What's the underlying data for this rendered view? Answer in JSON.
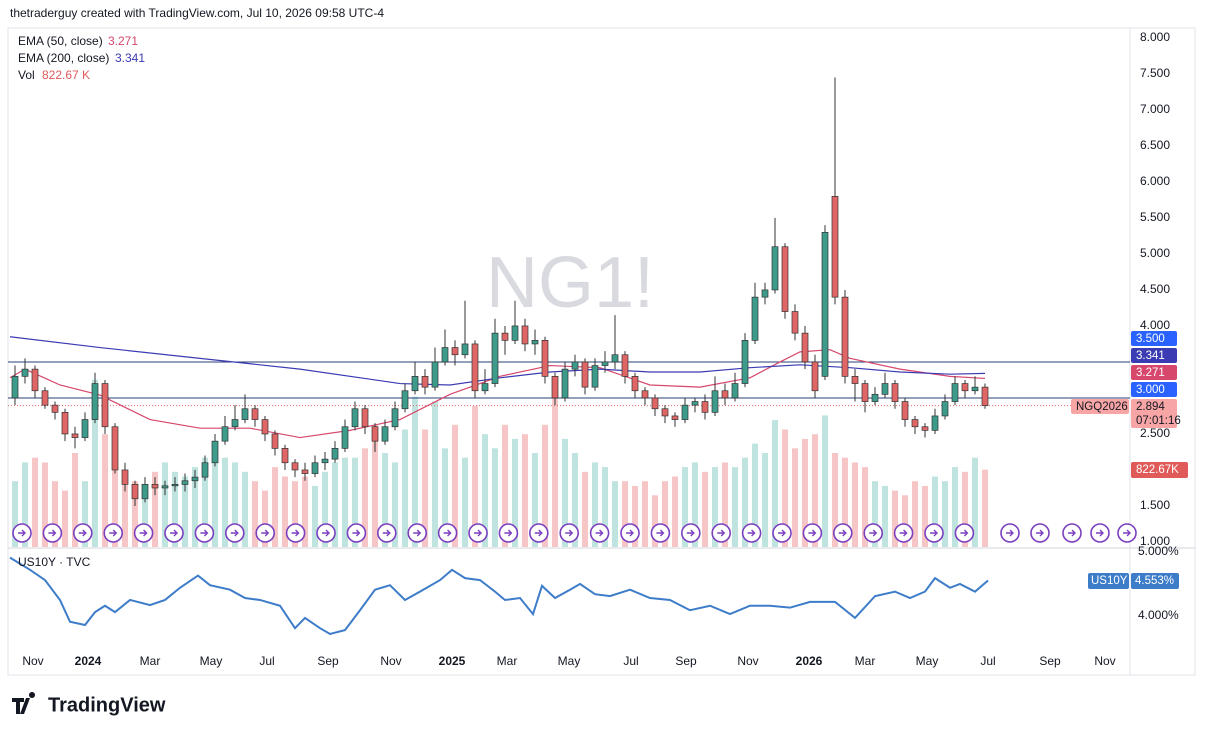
{
  "header": "thetraderguy created with TradingView.com, Jul 10, 2026 09:58 UTC-4",
  "footer": "TradingView",
  "chart_data": [
    {
      "type": "candlestick",
      "watermark": "NG1!",
      "up_color": "#3d9b8c",
      "down_color": "#e06666",
      "ylim": [
        0.93,
        8.11
      ],
      "yticks": [
        {
          "value": 8,
          "label": "8.000"
        },
        {
          "value": 7.5,
          "label": "7.500"
        },
        {
          "value": 7,
          "label": "7.000"
        },
        {
          "value": 6.5,
          "label": "6.500"
        },
        {
          "value": 6,
          "label": "6.000"
        },
        {
          "value": 5.5,
          "label": "5.500"
        },
        {
          "value": 5,
          "label": "5.000"
        },
        {
          "value": 4.5,
          "label": "4.500"
        },
        {
          "value": 4,
          "label": "4.000"
        },
        {
          "value": 2.5,
          "label": "2.500"
        },
        {
          "value": 1.5,
          "label": "1.500"
        },
        {
          "value": 1,
          "label": "1.000"
        }
      ],
      "time_axis": [
        "Nov",
        "2024",
        "Mar",
        "May",
        "Jul",
        "Sep",
        "Nov",
        "2025",
        "Mar",
        "May",
        "Jul",
        "Sep",
        "Nov",
        "2026",
        "Mar",
        "May",
        "Jul",
        "Sep",
        "Nov"
      ],
      "candles": [
        [
          3.0,
          3.45,
          2.9,
          3.3
        ],
        [
          3.3,
          3.55,
          3.2,
          3.4
        ],
        [
          3.4,
          3.45,
          3.0,
          3.1
        ],
        [
          3.1,
          3.15,
          2.85,
          2.9
        ],
        [
          2.9,
          2.95,
          2.7,
          2.8
        ],
        [
          2.8,
          2.85,
          2.4,
          2.5
        ],
        [
          2.5,
          2.6,
          2.3,
          2.45
        ],
        [
          2.45,
          2.8,
          2.4,
          2.7
        ],
        [
          2.7,
          3.35,
          2.65,
          3.2
        ],
        [
          3.2,
          3.25,
          2.5,
          2.6
        ],
        [
          2.6,
          2.65,
          1.95,
          2.0
        ],
        [
          2.0,
          2.1,
          1.7,
          1.8
        ],
        [
          1.8,
          1.85,
          1.5,
          1.6
        ],
        [
          1.6,
          1.9,
          1.55,
          1.8
        ],
        [
          1.8,
          1.9,
          1.65,
          1.75
        ],
        [
          1.75,
          1.85,
          1.65,
          1.78
        ],
        [
          1.78,
          1.9,
          1.7,
          1.8
        ],
        [
          1.8,
          1.95,
          1.7,
          1.85
        ],
        [
          1.85,
          2.0,
          1.75,
          1.9
        ],
        [
          1.9,
          2.2,
          1.85,
          2.1
        ],
        [
          2.1,
          2.5,
          2.05,
          2.4
        ],
        [
          2.4,
          2.75,
          2.35,
          2.6
        ],
        [
          2.6,
          2.9,
          2.55,
          2.7
        ],
        [
          2.7,
          3.05,
          2.65,
          2.85
        ],
        [
          2.85,
          2.9,
          2.6,
          2.7
        ],
        [
          2.7,
          2.75,
          2.4,
          2.5
        ],
        [
          2.5,
          2.55,
          2.2,
          2.3
        ],
        [
          2.3,
          2.35,
          2.0,
          2.1
        ],
        [
          2.1,
          2.15,
          1.9,
          2.0
        ],
        [
          2.0,
          2.1,
          1.85,
          1.95
        ],
        [
          1.95,
          2.2,
          1.9,
          2.1
        ],
        [
          2.1,
          2.25,
          2.0,
          2.15
        ],
        [
          2.15,
          2.4,
          2.1,
          2.3
        ],
        [
          2.3,
          2.7,
          2.25,
          2.6
        ],
        [
          2.6,
          2.95,
          2.55,
          2.85
        ],
        [
          2.85,
          2.9,
          2.5,
          2.6
        ],
        [
          2.6,
          2.65,
          2.25,
          2.4
        ],
        [
          2.4,
          2.7,
          2.35,
          2.6
        ],
        [
          2.6,
          2.95,
          2.55,
          2.85
        ],
        [
          2.85,
          3.2,
          2.8,
          3.1
        ],
        [
          3.1,
          3.5,
          3.05,
          3.3
        ],
        [
          3.3,
          3.4,
          3.05,
          3.15
        ],
        [
          3.15,
          3.7,
          3.1,
          3.5
        ],
        [
          3.5,
          3.95,
          3.45,
          3.7
        ],
        [
          3.7,
          3.8,
          3.45,
          3.6
        ],
        [
          3.6,
          4.35,
          3.55,
          3.75
        ],
        [
          3.75,
          3.8,
          3.0,
          3.1
        ],
        [
          3.1,
          3.4,
          3.05,
          3.2
        ],
        [
          3.2,
          4.1,
          3.15,
          3.9
        ],
        [
          3.9,
          4.0,
          3.6,
          3.8
        ],
        [
          3.8,
          4.35,
          3.75,
          4.0
        ],
        [
          4.0,
          4.1,
          3.65,
          3.75
        ],
        [
          3.75,
          3.95,
          3.6,
          3.8
        ],
        [
          3.8,
          3.85,
          3.2,
          3.3
        ],
        [
          3.3,
          3.35,
          2.9,
          3.0
        ],
        [
          3.0,
          3.5,
          2.95,
          3.4
        ],
        [
          3.4,
          3.6,
          3.3,
          3.5
        ],
        [
          3.5,
          3.55,
          3.05,
          3.15
        ],
        [
          3.15,
          3.55,
          3.1,
          3.45
        ],
        [
          3.45,
          3.65,
          3.35,
          3.5
        ],
        [
          3.5,
          4.15,
          3.4,
          3.6
        ],
        [
          3.6,
          3.65,
          3.2,
          3.3
        ],
        [
          3.3,
          3.35,
          3.0,
          3.1
        ],
        [
          3.1,
          3.15,
          2.9,
          3.0
        ],
        [
          3.0,
          3.05,
          2.75,
          2.85
        ],
        [
          2.85,
          2.9,
          2.65,
          2.75
        ],
        [
          2.75,
          2.8,
          2.6,
          2.7
        ],
        [
          2.7,
          3.0,
          2.65,
          2.9
        ],
        [
          2.9,
          3.0,
          2.8,
          2.95
        ],
        [
          2.95,
          3.05,
          2.7,
          2.8
        ],
        [
          2.8,
          3.3,
          2.75,
          3.1
        ],
        [
          3.1,
          3.2,
          2.9,
          3.0
        ],
        [
          3.0,
          3.35,
          2.95,
          3.2
        ],
        [
          3.2,
          3.9,
          3.15,
          3.8
        ],
        [
          3.8,
          4.6,
          3.75,
          4.4
        ],
        [
          4.4,
          4.6,
          4.3,
          4.5
        ],
        [
          4.5,
          5.5,
          4.45,
          5.1
        ],
        [
          5.1,
          5.15,
          4.1,
          4.2
        ],
        [
          4.2,
          4.3,
          3.8,
          3.9
        ],
        [
          3.9,
          4.0,
          3.4,
          3.5
        ],
        [
          3.5,
          3.6,
          3.0,
          3.1
        ],
        [
          3.3,
          5.4,
          3.25,
          5.3
        ],
        [
          5.8,
          7.45,
          4.3,
          4.4
        ],
        [
          4.4,
          4.5,
          3.2,
          3.3
        ],
        [
          3.3,
          3.4,
          2.95,
          3.2
        ],
        [
          3.2,
          3.25,
          2.8,
          2.95
        ],
        [
          2.95,
          3.15,
          2.9,
          3.05
        ],
        [
          3.05,
          3.35,
          3.0,
          3.2
        ],
        [
          3.2,
          3.25,
          2.85,
          2.95
        ],
        [
          2.95,
          3.0,
          2.6,
          2.7
        ],
        [
          2.7,
          2.75,
          2.5,
          2.6
        ],
        [
          2.6,
          2.65,
          2.45,
          2.55
        ],
        [
          2.55,
          2.85,
          2.5,
          2.75
        ],
        [
          2.75,
          3.05,
          2.7,
          2.95
        ],
        [
          2.95,
          3.3,
          2.9,
          3.2
        ],
        [
          3.2,
          3.25,
          3.0,
          3.1
        ],
        [
          3.1,
          3.3,
          3.05,
          3.15
        ],
        [
          3.15,
          3.2,
          2.85,
          2.894
        ]
      ],
      "indicators": [
        {
          "name": "EMA (50, close)",
          "color": "#d6476b",
          "last": 3.271,
          "points": [
            [
              -0.5,
              3.28
            ],
            [
              1,
              3.4
            ],
            [
              4.5,
              3.18
            ],
            [
              8.5,
              3.04
            ],
            [
              13.5,
              2.7
            ],
            [
              18.5,
              2.58
            ],
            [
              23.5,
              2.58
            ],
            [
              28.5,
              2.45
            ],
            [
              33.5,
              2.55
            ],
            [
              38.5,
              2.7
            ],
            [
              43.5,
              3.05
            ],
            [
              48.5,
              3.3
            ],
            [
              53.5,
              3.45
            ],
            [
              58.5,
              3.42
            ],
            [
              63.5,
              3.18
            ],
            [
              68.5,
              3.15
            ],
            [
              73.5,
              3.28
            ],
            [
              76.5,
              3.5
            ],
            [
              78.5,
              3.64
            ],
            [
              81.5,
              3.67
            ],
            [
              83.5,
              3.55
            ],
            [
              88.5,
              3.4
            ],
            [
              93.5,
              3.3
            ],
            [
              97,
              3.271
            ]
          ]
        },
        {
          "name": "EMA (200, close)",
          "color": "#3b3bb3",
          "last": 3.341,
          "points": [
            [
              -0.5,
              3.85
            ],
            [
              8.5,
              3.7
            ],
            [
              18.5,
              3.55
            ],
            [
              28.5,
              3.4
            ],
            [
              38.5,
              3.2
            ],
            [
              43.5,
              3.18
            ],
            [
              48.5,
              3.28
            ],
            [
              53.5,
              3.36
            ],
            [
              58.5,
              3.4
            ],
            [
              63.5,
              3.36
            ],
            [
              68.5,
              3.36
            ],
            [
              73.5,
              3.42
            ],
            [
              78.5,
              3.46
            ],
            [
              83.5,
              3.42
            ],
            [
              88.5,
              3.36
            ],
            [
              93.5,
              3.33
            ],
            [
              97,
              3.341
            ]
          ]
        }
      ],
      "volume": {
        "name": "Vol",
        "up_color": "#bfe3de",
        "down_color": "#f6c6c6",
        "badge_color": "#e05a5a",
        "vlim": [
          0,
          2000
        ],
        "last": 822.67,
        "last_labels": [
          "822.67 K",
          "822.67K"
        ],
        "values": [
          700,
          900,
          950,
          900,
          700,
          600,
          1000,
          700,
          1780,
          1200,
          950,
          800,
          700,
          600,
          800,
          900,
          800,
          750,
          850,
          950,
          1050,
          950,
          900,
          800,
          700,
          600,
          850,
          750,
          700,
          750,
          650,
          800,
          900,
          950,
          950,
          1050,
          1300,
          1000,
          900,
          1250,
          1600,
          1250,
          1550,
          1050,
          1300,
          950,
          1500,
          1200,
          1050,
          1300,
          1150,
          1200,
          1000,
          1300,
          1650,
          1150,
          1000,
          800,
          900,
          850,
          700,
          700,
          650,
          700,
          550,
          700,
          750,
          850,
          900,
          800,
          850,
          900,
          850,
          950,
          1100,
          1000,
          1350,
          1250,
          1050,
          1150,
          1200,
          1400,
          1000,
          950,
          900,
          850,
          700,
          650,
          600,
          550,
          700,
          650,
          750,
          700,
          850,
          800,
          950,
          822.67
        ]
      },
      "levels": [
        {
          "value": 3.5,
          "label": "3.500",
          "color": "#2962ff"
        },
        {
          "value": 3.0,
          "label": "3.000",
          "color": "#2962ff"
        }
      ],
      "level_line_color": "#2a3f7a",
      "last_price": 2.894,
      "symbol": "NGQ2026",
      "countdown": "07:01:16",
      "last_color": "#f7a5a5"
    },
    {
      "type": "line",
      "name": "US10Y · TVC",
      "symbol": "US10Y",
      "color": "#3d7cc9",
      "ylim": [
        3.47,
        5.06
      ],
      "yticks": [
        {
          "value": 5,
          "label": "5.000%"
        },
        {
          "value": 4,
          "label": "4.000%"
        }
      ],
      "last": {
        "value": 4.553,
        "label": "4.553%"
      },
      "points": [
        [
          -0.5,
          4.91
        ],
        [
          1.5,
          4.72
        ],
        [
          3,
          4.56
        ],
        [
          4.5,
          4.25
        ],
        [
          5.5,
          3.91
        ],
        [
          7,
          3.86
        ],
        [
          8,
          4.06
        ],
        [
          9,
          4.16
        ],
        [
          10,
          4.06
        ],
        [
          11.5,
          4.25
        ],
        [
          13.5,
          4.17
        ],
        [
          15,
          4.25
        ],
        [
          16.5,
          4.44
        ],
        [
          18.3,
          4.63
        ],
        [
          19.5,
          4.48
        ],
        [
          21.5,
          4.41
        ],
        [
          23,
          4.28
        ],
        [
          24.5,
          4.25
        ],
        [
          26.5,
          4.16
        ],
        [
          28,
          3.81
        ],
        [
          29,
          3.97
        ],
        [
          30.5,
          3.81
        ],
        [
          31.5,
          3.72
        ],
        [
          33,
          3.78
        ],
        [
          34.5,
          4.09
        ],
        [
          36,
          4.41
        ],
        [
          37.5,
          4.48
        ],
        [
          39,
          4.25
        ],
        [
          40.5,
          4.38
        ],
        [
          42.5,
          4.56
        ],
        [
          43.7,
          4.72
        ],
        [
          45,
          4.59
        ],
        [
          46.5,
          4.56
        ],
        [
          48,
          4.38
        ],
        [
          49,
          4.25
        ],
        [
          50.5,
          4.28
        ],
        [
          51.8,
          4.03
        ],
        [
          52.7,
          4.47
        ],
        [
          54,
          4.28
        ],
        [
          55.5,
          4.41
        ],
        [
          56.5,
          4.5
        ],
        [
          58,
          4.34
        ],
        [
          59.5,
          4.31
        ],
        [
          61.5,
          4.41
        ],
        [
          63.5,
          4.28
        ],
        [
          65.5,
          4.25
        ],
        [
          67.5,
          4.09
        ],
        [
          69.5,
          4.16
        ],
        [
          71.5,
          4.03
        ],
        [
          73.5,
          4.16
        ],
        [
          75.5,
          4.16
        ],
        [
          77.5,
          4.13
        ],
        [
          79.5,
          4.22
        ],
        [
          82,
          4.22
        ],
        [
          84,
          3.97
        ],
        [
          86,
          4.31
        ],
        [
          88,
          4.38
        ],
        [
          89.5,
          4.28
        ],
        [
          91,
          4.38
        ],
        [
          92,
          4.59
        ],
        [
          93.5,
          4.44
        ],
        [
          94.5,
          4.5
        ],
        [
          96,
          4.38
        ],
        [
          97.3,
          4.553
        ]
      ]
    }
  ]
}
